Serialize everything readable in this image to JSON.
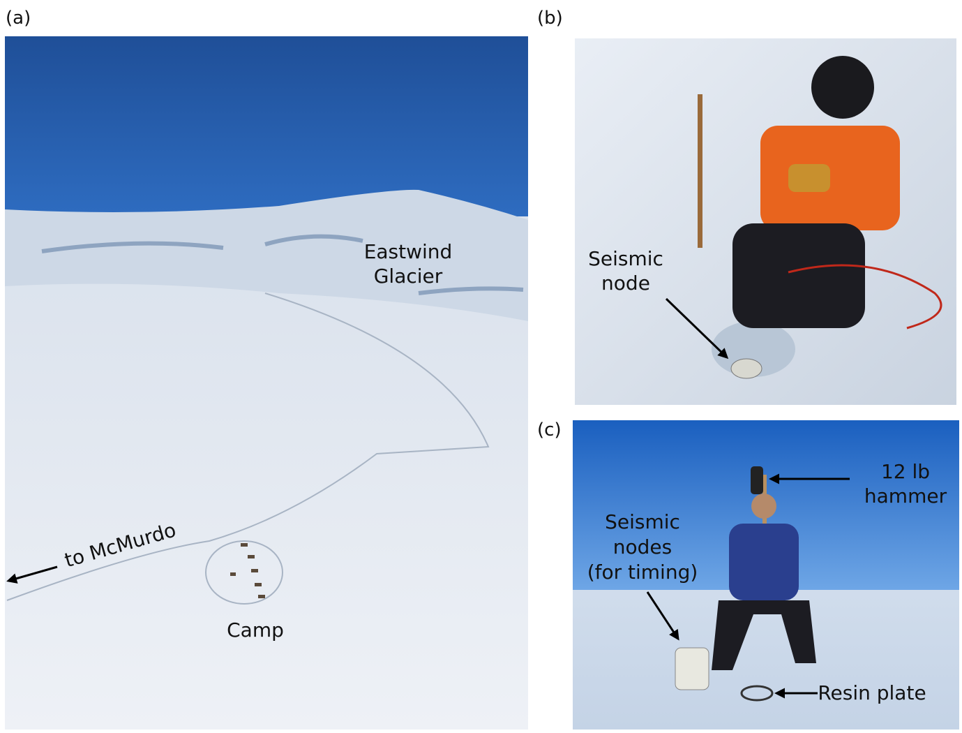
{
  "panels": {
    "a": {
      "label": "(a)",
      "glacier": [
        "Eastwind",
        "Glacier"
      ],
      "route": "to McMurdo",
      "camp": "Camp"
    },
    "b": {
      "label": "(b)",
      "node": [
        "Seismic",
        "node"
      ]
    },
    "c": {
      "label": "(c)",
      "hammer": [
        "12 lb",
        "hammer"
      ],
      "nodes": [
        "Seismic",
        "nodes",
        "(for timing)"
      ],
      "plate": "Resin plate"
    }
  }
}
